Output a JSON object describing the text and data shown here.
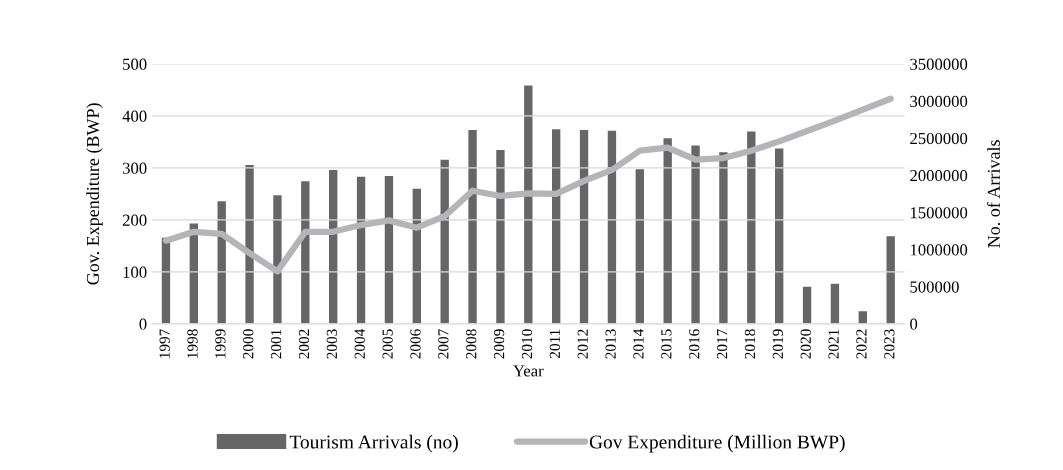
{
  "chart_data": {
    "type": "bar",
    "xlabel": "Year",
    "ylabel": "Gov. Expenditure (BWP)",
    "y2label": "No. of Arrivals",
    "categories": [
      "1997",
      "1998",
      "1999",
      "2000",
      "2001",
      "2002",
      "2003",
      "2004",
      "2005",
      "2006",
      "2007",
      "2008",
      "2009",
      "2010",
      "2011",
      "2012",
      "2013",
      "2014",
      "2015",
      "2016",
      "2017",
      "2018",
      "2019",
      "2020",
      "2021",
      "2022",
      "2023"
    ],
    "series": [
      {
        "name": "Tourism Arrivals (no)",
        "axis": "y2",
        "color": "#666666",
        "values": [
          1160000,
          1350000,
          1650000,
          2140000,
          1730000,
          1920000,
          2070000,
          1980000,
          1990000,
          1820000,
          2210000,
          2610000,
          2340000,
          3210000,
          2620000,
          2610000,
          2600000,
          2080000,
          2500000,
          2400000,
          2310000,
          2590000,
          2360000,
          500000,
          540000,
          170000,
          1180000
        ]
      },
      {
        "name": "Gov Expenditure (Million BWP)",
        "type": "line",
        "axis": "y",
        "color": "#b4b5b8",
        "values": [
          160,
          177,
          173,
          136,
          101,
          177,
          177,
          190,
          199,
          185,
          207,
          256,
          246,
          251,
          250,
          275,
          296,
          333,
          339,
          316,
          319,
          333,
          351,
          371,
          391,
          412,
          433
        ]
      }
    ],
    "ylim": [
      0,
      500
    ],
    "yticks": [
      0,
      100,
      200,
      300,
      400,
      500
    ],
    "y2lim": [
      0,
      3500000
    ],
    "y2ticks": [
      0,
      500000,
      1000000,
      1500000,
      2000000,
      2500000,
      3000000,
      3500000
    ],
    "grid": "y",
    "legend": "bottom",
    "marker": "none",
    "line_style": "solid"
  }
}
